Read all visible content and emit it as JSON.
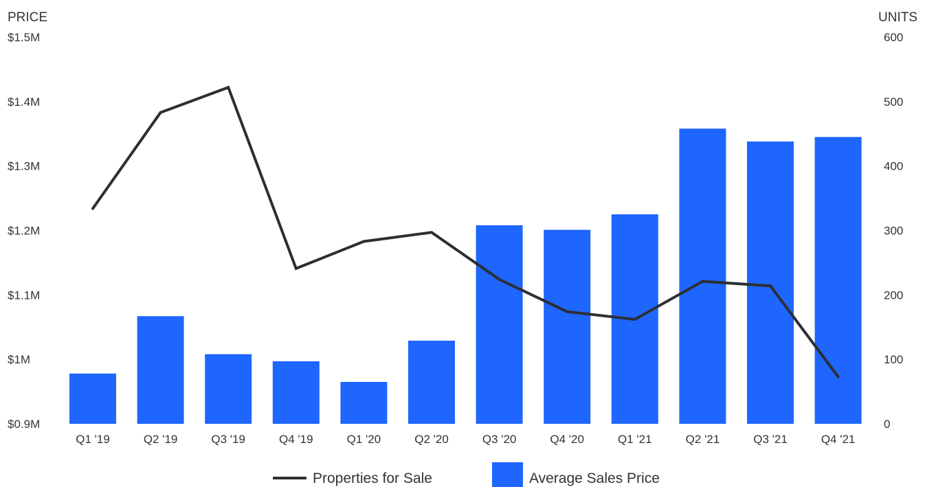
{
  "chart_data": {
    "type": "bar",
    "categories": [
      "Q1 '19",
      "Q2 '19",
      "Q3 '19",
      "Q4 '19",
      "Q1 '20",
      "Q2 '20",
      "Q3 '20",
      "Q4 '20",
      "Q1 '21",
      "Q2 '21",
      "Q3 '21",
      "Q4 '21"
    ],
    "y_left": {
      "title": "PRICE",
      "min": 0.9,
      "max": 1.5,
      "ticks": [
        {
          "value": 0.9,
          "label": "$0.9M"
        },
        {
          "value": 1.0,
          "label": "$1M"
        },
        {
          "value": 1.1,
          "label": "$1.1M"
        },
        {
          "value": 1.2,
          "label": "$1.2M"
        },
        {
          "value": 1.3,
          "label": "$1.3M"
        },
        {
          "value": 1.4,
          "label": "$1.4M"
        },
        {
          "value": 1.5,
          "label": "$1.5M"
        }
      ]
    },
    "y_right": {
      "title": "UNITS",
      "min": 0,
      "max": 600,
      "ticks": [
        {
          "value": 0,
          "label": "0"
        },
        {
          "value": 100,
          "label": "100"
        },
        {
          "value": 200,
          "label": "200"
        },
        {
          "value": 300,
          "label": "300"
        },
        {
          "value": 400,
          "label": "400"
        },
        {
          "value": 500,
          "label": "500"
        },
        {
          "value": 600,
          "label": "600"
        }
      ]
    },
    "series": [
      {
        "name": "Average Sales Price",
        "type": "bar",
        "axis": "left",
        "unit": "$M",
        "color": "#1f66ff",
        "values": [
          0.978,
          1.067,
          1.008,
          0.997,
          0.965,
          1.029,
          1.208,
          1.201,
          1.225,
          1.358,
          1.338,
          1.345
        ]
      },
      {
        "name": "Properties for Sale",
        "type": "line",
        "axis": "right",
        "color": "#2b2f33",
        "values": [
          334,
          483,
          522,
          241,
          283,
          297,
          224,
          174,
          162,
          221,
          214,
          73
        ]
      }
    ],
    "legend": {
      "position": "bottom-center",
      "items": [
        {
          "label": "Properties for Sale",
          "symbol": "line",
          "color": "#2b2f33"
        },
        {
          "label": "Average Sales Price",
          "symbol": "square",
          "color": "#1f66ff"
        }
      ]
    },
    "grid": false
  }
}
